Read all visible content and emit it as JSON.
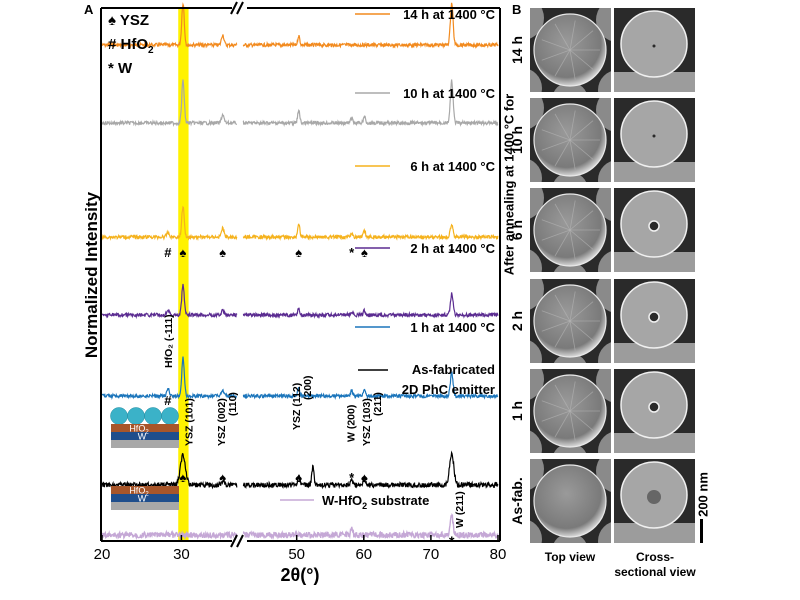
{
  "panel_a_label": "A",
  "panel_b_label": "B",
  "chart_data": {
    "type": "line",
    "title": "",
    "xlabel": "2θ(°)",
    "ylabel": "Normalized Intensity",
    "xlim": [
      20,
      80
    ],
    "axis_break": [
      37,
      42
    ],
    "xticks": [
      20,
      30,
      50,
      60,
      70,
      80
    ],
    "xtick_labels": [
      "20",
      "30",
      "50",
      "60",
      "70",
      "80"
    ],
    "highlight_band": {
      "x_range": [
        29.6,
        30.9
      ],
      "color": "#fff200"
    },
    "legend_symbols": [
      {
        "symbol": "♠",
        "label": "YSZ"
      },
      {
        "symbol": "#",
        "label": "HfO",
        "sub": "2"
      },
      {
        "symbol": "*",
        "label": "W"
      }
    ],
    "series": [
      {
        "name": "14 h at 1400 °C",
        "color": "#f28a1e",
        "peaks": [
          [
            30.2,
            1.0
          ],
          [
            35.2,
            0.25
          ],
          [
            50.3,
            0.22
          ],
          [
            73.1,
            1.0
          ]
        ]
      },
      {
        "name": "10 h at 1400 °C",
        "color": "#a8a8a8",
        "peaks": [
          [
            30.2,
            1.0
          ],
          [
            35.2,
            0.2
          ],
          [
            50.3,
            0.3
          ],
          [
            58.2,
            0.12
          ],
          [
            60.1,
            0.15
          ],
          [
            73.1,
            1.0
          ]
        ]
      },
      {
        "name": "6 h at 1400 °C",
        "color": "#f5b21d",
        "peaks": [
          [
            28.3,
            0.15
          ],
          [
            30.2,
            1.0
          ],
          [
            35.2,
            0.3
          ],
          [
            50.3,
            0.45
          ],
          [
            58.2,
            0.12
          ],
          [
            60.1,
            0.2
          ],
          [
            73.1,
            0.45
          ]
        ]
      },
      {
        "name": "2 h at 1400 °C",
        "color": "#5b2c91",
        "peaks": [
          [
            28.3,
            0.2
          ],
          [
            30.2,
            1.0
          ],
          [
            35.2,
            0.15
          ],
          [
            50.3,
            0.2
          ],
          [
            58.2,
            0.1
          ],
          [
            60.1,
            0.15
          ],
          [
            73.1,
            0.7
          ]
        ]
      },
      {
        "name": "1 h at 1400 °C",
        "color": "#1b75bb",
        "peaks": [
          [
            28.3,
            0.2
          ],
          [
            30.2,
            1.0
          ],
          [
            35.2,
            0.15
          ],
          [
            50.3,
            0.2
          ],
          [
            58.2,
            0.15
          ],
          [
            60.1,
            0.15
          ],
          [
            73.1,
            0.6
          ]
        ]
      },
      {
        "name": "As-fabricated\n2D PhC emitter",
        "name_lines": [
          "As-fabricated",
          "2D PhC emitter"
        ],
        "color": "#000000",
        "peaks": [
          [
            30.2,
            1.0
          ],
          [
            35.2,
            0.15
          ],
          [
            50.3,
            0.3
          ],
          [
            52.4,
            0.6
          ],
          [
            58.2,
            0.2
          ],
          [
            60.1,
            0.2
          ],
          [
            73.1,
            1.0
          ]
        ]
      },
      {
        "name": "W-HfO2 substrate",
        "label_text": "W-HfO",
        "label_sub": "2",
        "label_suffix": " substrate",
        "color": "#c5a8d6",
        "peaks": [
          [
            58.2,
            0.3
          ],
          [
            73.1,
            0.9
          ]
        ]
      }
    ],
    "peak_markers": {
      "six_h": [
        {
          "x": 28.3,
          "symbol": "#"
        },
        {
          "x": 30.2,
          "symbol": "♠"
        },
        {
          "x": 35.2,
          "symbol": "♠"
        },
        {
          "x": 50.3,
          "symbol": "♠"
        },
        {
          "x": 58.2,
          "symbol": "*"
        },
        {
          "x": 60.1,
          "symbol": "♠"
        },
        {
          "x": 73.1,
          "symbol": "*"
        }
      ],
      "as_fab": [
        {
          "x": 30.2,
          "symbol": "♠"
        },
        {
          "x": 35.2,
          "symbol": "♠"
        },
        {
          "x": 50.3,
          "symbol": "♠"
        },
        {
          "x": 58.2,
          "symbol": "*"
        },
        {
          "x": 60.1,
          "symbol": "♠"
        }
      ],
      "hfo2_hash_one_h": {
        "x": 28.3,
        "symbol": "#"
      },
      "substrate_star": {
        "x": 73.1,
        "symbol": "*"
      }
    },
    "annotations": [
      {
        "text": "HfO₂ (-111)",
        "x": 28.3
      },
      {
        "text": "YSZ (101)",
        "x": 30.9
      },
      {
        "text": "YSZ (002)",
        "text2": "(110)",
        "x": 35.0
      },
      {
        "text": "YSZ (112)",
        "text2": "(200)",
        "x": 49.9
      },
      {
        "text": "W (200)",
        "x": 58.0
      },
      {
        "text": "YSZ (103)",
        "text2": "(211)",
        "x": 60.3
      },
      {
        "text": "W (211)",
        "x": 74.2
      }
    ],
    "stack_labels": {
      "hfo2": "HfO",
      "hfo2_sub": "2",
      "w": "W"
    }
  },
  "sem": {
    "row_labels": [
      "14 h",
      "10 h",
      "6 h",
      "2 h",
      "1 h",
      "As-fab."
    ],
    "column_labels": [
      "Top view",
      "Cross-\nsectional view"
    ],
    "column_label_lines": [
      [
        "Top view"
      ],
      [
        "Cross-",
        "sectional view"
      ]
    ],
    "side_caption": "After annealing at 1400 °C for",
    "scale_bar": "200 nm"
  }
}
